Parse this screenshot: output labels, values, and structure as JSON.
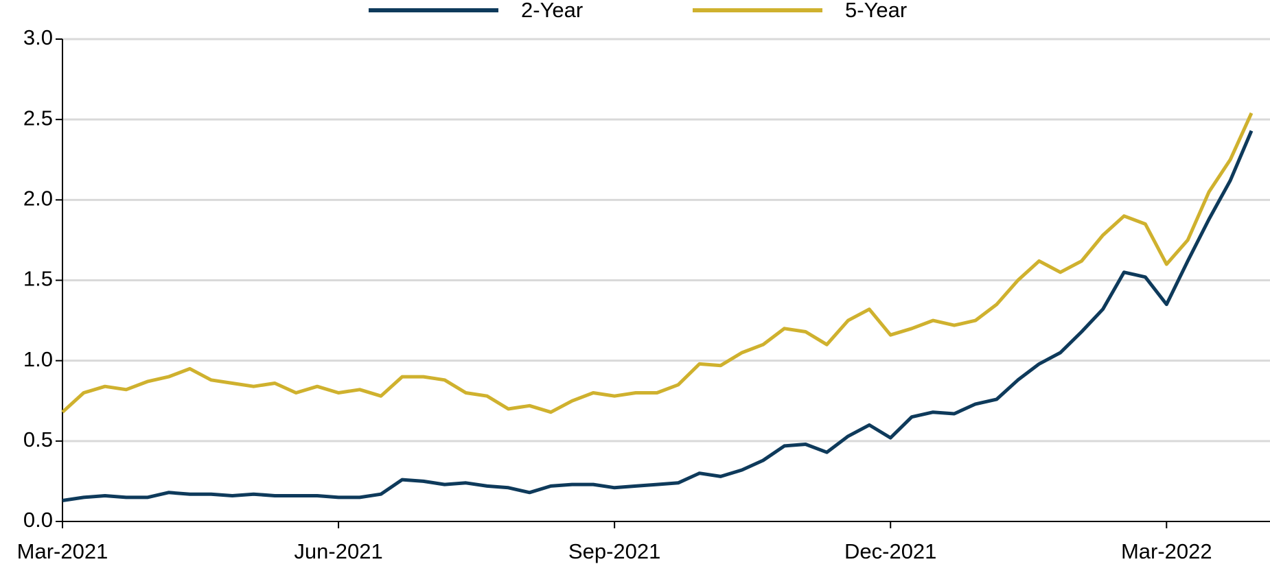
{
  "chart_data": {
    "type": "line",
    "categories": [
      "Mar-2021",
      null,
      null,
      null,
      null,
      null,
      null,
      null,
      null,
      null,
      null,
      null,
      null,
      "Jun-2021",
      null,
      null,
      null,
      null,
      null,
      null,
      null,
      null,
      null,
      null,
      null,
      null,
      "Sep-2021",
      null,
      null,
      null,
      null,
      null,
      null,
      null,
      null,
      null,
      null,
      null,
      null,
      "Dec-2021",
      null,
      null,
      null,
      null,
      null,
      null,
      null,
      null,
      null,
      null,
      null,
      null,
      "Mar-2022",
      null,
      null,
      null,
      null
    ],
    "series": [
      {
        "name": "2-Year",
        "color": "#0e3a5b",
        "values": [
          0.13,
          0.15,
          0.16,
          0.15,
          0.15,
          0.18,
          0.17,
          0.17,
          0.16,
          0.17,
          0.16,
          0.16,
          0.16,
          0.15,
          0.15,
          0.17,
          0.26,
          0.25,
          0.23,
          0.24,
          0.22,
          0.21,
          0.18,
          0.22,
          0.23,
          0.23,
          0.21,
          0.22,
          0.23,
          0.24,
          0.3,
          0.28,
          0.32,
          0.38,
          0.47,
          0.48,
          0.43,
          0.53,
          0.6,
          0.52,
          0.65,
          0.68,
          0.67,
          0.73,
          0.76,
          0.88,
          0.98,
          1.05,
          1.18,
          1.32,
          1.55,
          1.52,
          1.35,
          1.62,
          1.88,
          2.12,
          2.43
        ]
      },
      {
        "name": "5-Year",
        "color": "#cfb12e",
        "values": [
          0.68,
          0.8,
          0.84,
          0.82,
          0.87,
          0.9,
          0.95,
          0.88,
          0.86,
          0.84,
          0.86,
          0.8,
          0.84,
          0.8,
          0.82,
          0.78,
          0.9,
          0.9,
          0.88,
          0.8,
          0.78,
          0.7,
          0.72,
          0.68,
          0.75,
          0.8,
          0.78,
          0.8,
          0.8,
          0.85,
          0.98,
          0.97,
          1.05,
          1.1,
          1.2,
          1.18,
          1.1,
          1.25,
          1.32,
          1.16,
          1.2,
          1.25,
          1.22,
          1.25,
          1.35,
          1.5,
          1.62,
          1.55,
          1.62,
          1.78,
          1.9,
          1.85,
          1.6,
          1.75,
          2.05,
          2.25,
          2.54
        ]
      }
    ],
    "ylim": [
      0,
      3
    ],
    "yticks": [
      {
        "value": 0,
        "label": "0.0"
      },
      0.5,
      {
        "value": 1,
        "label": "1.0"
      },
      1.5,
      {
        "value": 2,
        "label": "2.0"
      },
      2.5,
      {
        "value": 3,
        "label": "3.0"
      }
    ],
    "grid": true,
    "legend": "top"
  }
}
